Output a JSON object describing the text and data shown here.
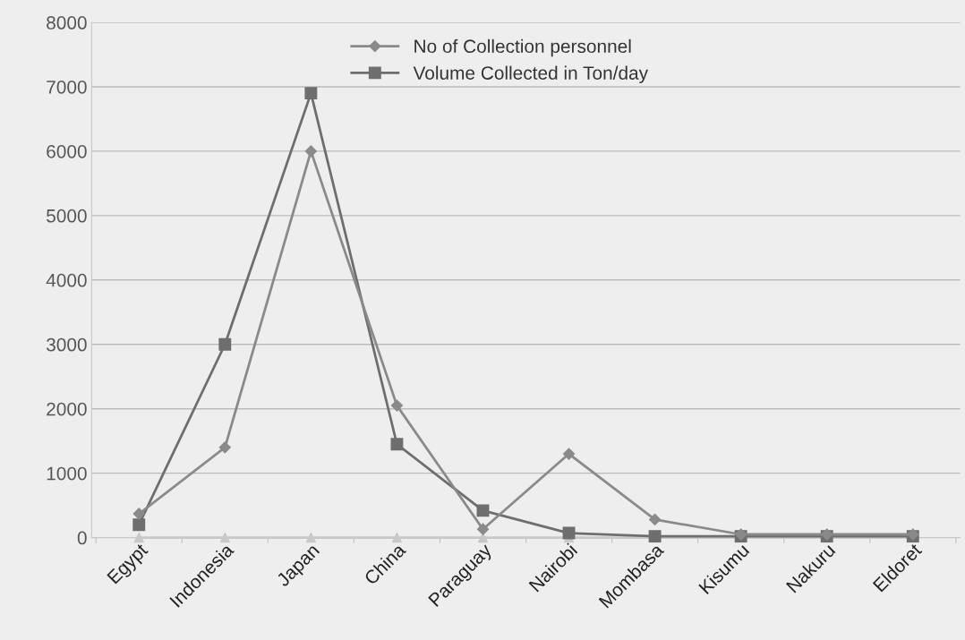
{
  "chart_data": {
    "type": "line",
    "categories": [
      "Egypt",
      "Indonesia",
      "Japan",
      "China",
      "Paraguay",
      "Nairobi",
      "Mombasa",
      "Kisumu",
      "Nakuru",
      "Eldoret"
    ],
    "series": [
      {
        "name": "No of Collection personnel",
        "color": "#8a8a8a",
        "marker": "diamond",
        "values": [
          370,
          1400,
          6000,
          2050,
          130,
          1300,
          280,
          50,
          50,
          50
        ]
      },
      {
        "name": "Volume Collected in Ton/day",
        "color": "#6e6e6e",
        "marker": "square",
        "values": [
          200,
          3000,
          6900,
          1450,
          420,
          70,
          20,
          20,
          20,
          20
        ]
      },
      {
        "color": "#c8c8c8",
        "marker": "triangle",
        "values": [
          0,
          0,
          0,
          0,
          0,
          0,
          0,
          0,
          0,
          0
        ]
      }
    ],
    "ylim": [
      0,
      8000
    ],
    "yticks": [
      0,
      1000,
      2000,
      3000,
      4000,
      5000,
      6000,
      7000,
      8000
    ],
    "grid": "y",
    "legend": "top"
  }
}
